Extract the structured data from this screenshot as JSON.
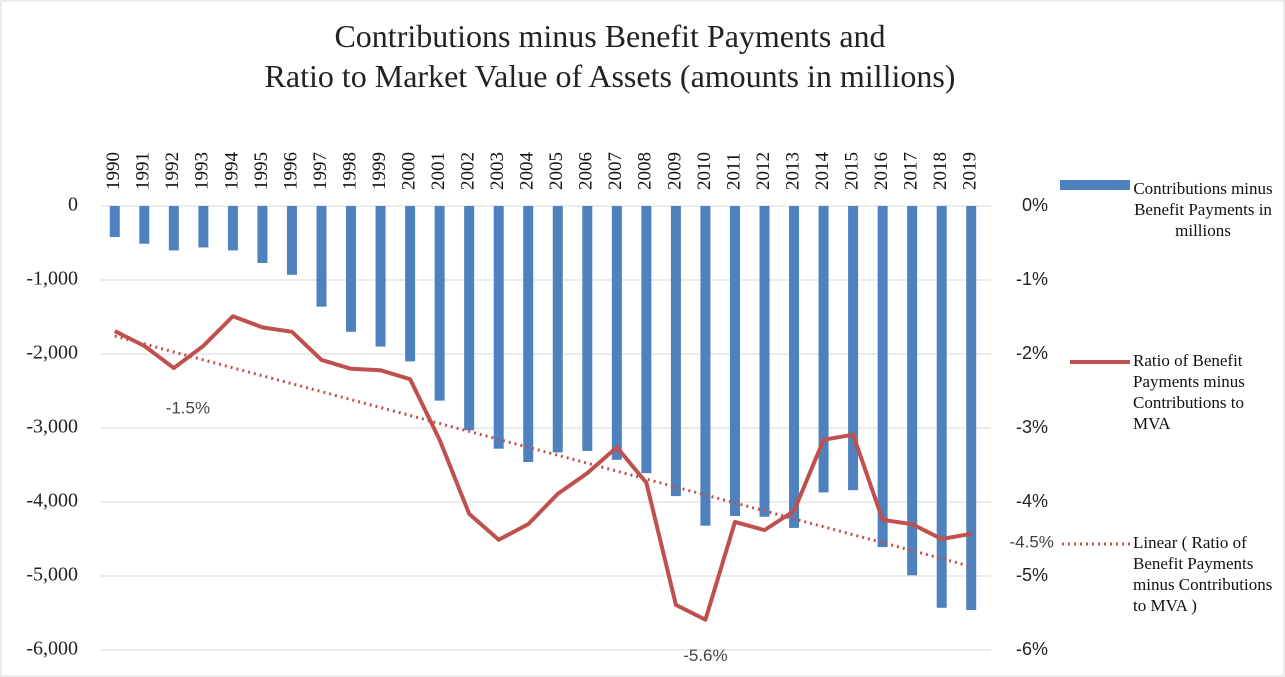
{
  "chart_data": {
    "type": "combo",
    "title": [
      "Contributions minus Benefit Payments and",
      "Ratio to Market Value of Assets (amounts in millions)"
    ],
    "categories": [
      "1990",
      "1991",
      "1992",
      "1993",
      "1994",
      "1995",
      "1996",
      "1997",
      "1998",
      "1999",
      "2000",
      "2001",
      "2002",
      "2003",
      "2004",
      "2005",
      "2006",
      "2007",
      "2008",
      "2009",
      "2010",
      "2011",
      "2012",
      "2013",
      "2014",
      "2015",
      "2016",
      "2017",
      "2018",
      "2019"
    ],
    "series": [
      {
        "name": "Contributions minus Benefit Payments in millions",
        "type": "bar",
        "color": "#4f81bd",
        "values": [
          -420,
          -510,
          -600,
          -560,
          -600,
          -770,
          -930,
          -1360,
          -1700,
          -1900,
          -2100,
          -2630,
          -3030,
          -3280,
          -3460,
          -3330,
          -3310,
          -3430,
          -3610,
          -3920,
          -4320,
          -4190,
          -4200,
          -4350,
          -3870,
          -3840,
          -4610,
          -4990,
          -5430,
          -5460
        ]
      },
      {
        "name": "Ratio of Benefit Payments minus Contributions to MVA",
        "type": "line",
        "axis": "y2",
        "color": "#c0504d",
        "values": [
          -1.69,
          -1.89,
          -2.19,
          -1.89,
          -1.49,
          -1.64,
          -1.7,
          -2.08,
          -2.2,
          -2.22,
          -2.34,
          -3.16,
          -4.16,
          -4.51,
          -4.3,
          -3.89,
          -3.61,
          -3.26,
          -3.74,
          -5.39,
          -5.59,
          -4.27,
          -4.38,
          -4.12,
          -3.16,
          -3.09,
          -4.24,
          -4.3,
          -4.5,
          -4.43
        ],
        "value_labels": [
          null,
          null,
          null,
          null,
          "-1.5%",
          null,
          null,
          null,
          null,
          null,
          null,
          null,
          null,
          null,
          null,
          null,
          null,
          null,
          null,
          null,
          "-5.6%",
          null,
          null,
          null,
          null,
          null,
          null,
          null,
          "-4.5%",
          null
        ],
        "trendline": {
          "type": "linear",
          "name": "Linear ( Ratio of Benefit Payments minus Contributions to MVA )",
          "color": "#c0504d"
        }
      }
    ],
    "ylim": [
      -6000,
      0
    ],
    "yticks": [
      {
        "value": -6000,
        "label": "-6,000"
      },
      {
        "value": -5000,
        "label": "-5,000"
      },
      {
        "value": -4000,
        "label": "-4,000"
      },
      {
        "value": -3000,
        "label": "-3,000"
      },
      {
        "value": -2000,
        "label": "-2,000"
      },
      {
        "value": -1000,
        "label": "-1,000"
      },
      0
    ],
    "y2lim": [
      -6,
      0
    ],
    "y2ticks": [
      {
        "value": -6,
        "label": "-6%"
      },
      {
        "value": -5,
        "label": "-5%"
      },
      {
        "value": -4,
        "label": "-4%"
      },
      {
        "value": -3,
        "label": "-3%"
      },
      {
        "value": -2,
        "label": "-2%"
      },
      {
        "value": -1,
        "label": "-1%"
      },
      {
        "value": 0,
        "label": "0%"
      }
    ],
    "grid": true,
    "legend": "right"
  }
}
